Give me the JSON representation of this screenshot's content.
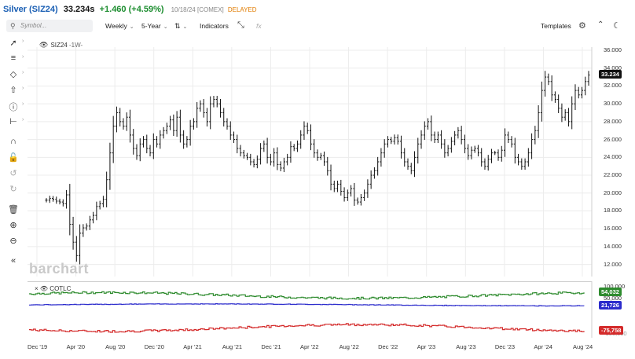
{
  "header": {
    "name": "Silver (SIZ24)",
    "price": "33.234s",
    "change": "+1.460 (+4.59%)",
    "date": "10/18/24 [COMEX]",
    "status": "DELAYED"
  },
  "toolbar": {
    "symbol_placeholder": "Symbol...",
    "period": "Weekly",
    "range": "5-Year",
    "indicators": "Indicators",
    "fx": "fx",
    "templates": "Templates"
  },
  "chart_labels": {
    "symbol": "SIZ24",
    "interval": "-1W-",
    "indicator": "COTLC",
    "watermark": "barchart"
  },
  "left_tools": [
    "line-tool-icon",
    "fib-tool-icon",
    "shape-tool-icon",
    "arrow-tool-icon",
    "info-tool-icon",
    "measure-tool-icon",
    "magnet-icon",
    "lock-icon",
    "undo-icon",
    "redo-icon",
    "trash-icon",
    "zoom-in-icon",
    "zoom-out-icon",
    "collapse-icon"
  ],
  "colors": {
    "title_blue": "#1a5fb4",
    "positive": "#1c8d2f",
    "delayed": "#e07b00",
    "green_series": "#2e8b2e",
    "blue_series": "#2b2bcc",
    "red_series": "#d42a2a",
    "price_badge": "#111111"
  },
  "chart_data": [
    {
      "type": "bar",
      "series_name": "SIZ24",
      "ylim": [
        11,
        36
      ],
      "yticks": [
        "36.000",
        "34.000",
        "32.000",
        "30.000",
        "28.000",
        "26.000",
        "24.000",
        "22.000",
        "20.000",
        "18.000",
        "16.000",
        "14.000",
        "12.000"
      ],
      "last_value_label": "33.234",
      "xticks": [
        "Dec '19",
        "Apr '20",
        "Aug '20",
        "Dec '20",
        "Apr '21",
        "Aug '21",
        "Dec '21",
        "Apr '22",
        "Aug '22",
        "Dec '22",
        "Apr '23",
        "Aug '23",
        "Dec '23",
        "Apr '24",
        "Aug '24"
      ],
      "weekly_close": [
        19.2,
        19.4,
        19.3,
        19.1,
        19.0,
        18.8,
        19.8,
        16.5,
        14.5,
        13.0,
        15.5,
        16.1,
        16.3,
        17.0,
        17.5,
        18.5,
        18.8,
        19.3,
        21.5,
        24.5,
        27.5,
        29.0,
        28.0,
        27.5,
        28.5,
        26.5,
        25.0,
        24.2,
        25.5,
        26.0,
        25.0,
        24.5,
        26.0,
        25.5,
        26.5,
        27.0,
        27.5,
        28.2,
        27.0,
        28.5,
        26.5,
        25.5,
        26.0,
        27.5,
        28.0,
        29.5,
        30.0,
        29.0,
        28.0,
        30.0,
        30.5,
        30.0,
        29.0,
        28.0,
        27.5,
        26.5,
        26.0,
        25.0,
        24.5,
        24.2,
        24.0,
        23.5,
        23.2,
        23.8,
        25.0,
        25.5,
        24.0,
        23.5,
        24.5,
        23.2,
        22.8,
        23.5,
        24.0,
        25.2,
        25.0,
        25.5,
        26.5,
        27.5,
        27.0,
        25.5,
        24.5,
        24.0,
        24.2,
        23.5,
        22.5,
        21.0,
        20.5,
        21.0,
        20.2,
        19.5,
        20.0,
        20.5,
        19.2,
        19.0,
        19.5,
        20.0,
        21.0,
        22.0,
        22.5,
        23.5,
        24.5,
        25.5,
        26.0,
        25.8,
        26.2,
        25.8,
        24.5,
        23.5,
        23.0,
        22.5,
        24.0,
        25.5,
        26.5,
        27.5,
        28.0,
        26.5,
        26.0,
        26.5,
        25.5,
        24.5,
        25.0,
        25.8,
        26.5,
        27.0,
        26.0,
        25.0,
        24.2,
        24.8,
        25.0,
        24.5,
        23.5,
        23.0,
        23.8,
        24.5,
        24.5,
        24.0,
        24.8,
        26.5,
        26.0,
        25.5,
        24.0,
        23.5,
        23.0,
        23.5,
        24.5,
        26.0,
        27.0,
        29.0,
        31.5,
        33.0,
        32.5,
        31.0,
        30.5,
        29.5,
        28.5,
        29.0,
        28.0,
        30.0,
        31.5,
        31.0,
        31.5,
        32.5,
        33.234
      ]
    },
    {
      "type": "line",
      "title": "COTLC",
      "ylim": [
        -110000,
        115000
      ],
      "yticks": [
        "100,000",
        "50,000"
      ],
      "series": [
        {
          "name": "green",
          "last_label": "54,032"
        },
        {
          "name": "blue",
          "last_label": "21,726"
        },
        {
          "name": "red",
          "last_label": "-75,758"
        }
      ],
      "extra_tick": "-100,000"
    }
  ]
}
